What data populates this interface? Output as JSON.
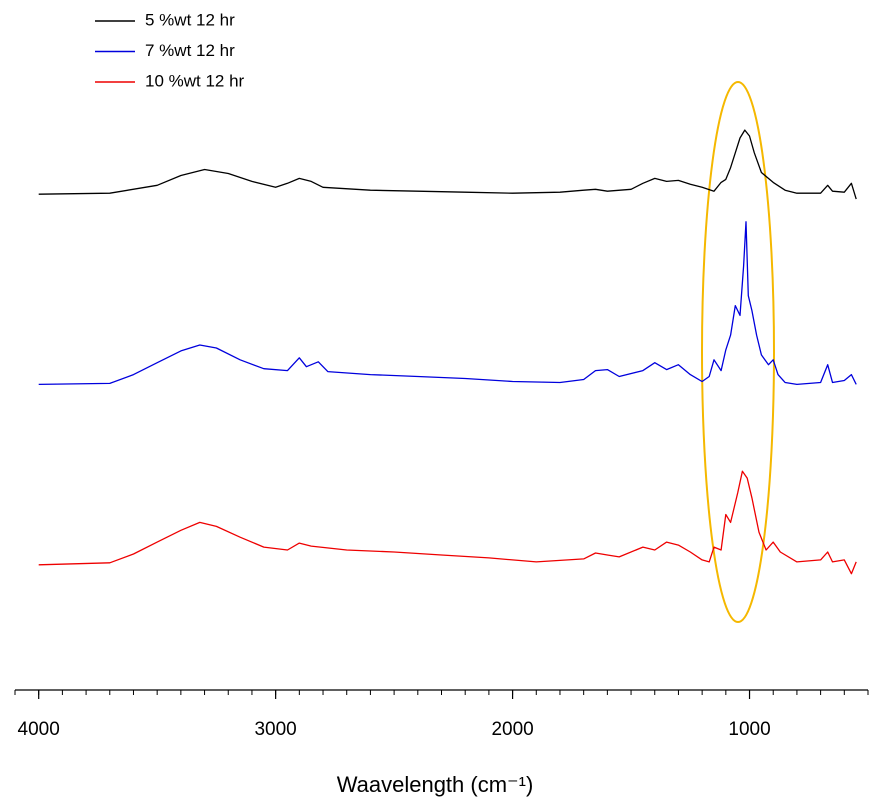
{
  "chart_data": {
    "type": "line",
    "xlabel": "Waavelength (cm⁻¹)",
    "xlim": [
      4100,
      500
    ],
    "xticks": [
      4000,
      3000,
      2000,
      1000
    ],
    "xminorticks": [
      4100,
      4000,
      3900,
      3800,
      3700,
      3600,
      3500,
      3400,
      3300,
      3200,
      3100,
      3000,
      2900,
      2800,
      2700,
      2600,
      2500,
      2400,
      2300,
      2200,
      2100,
      2000,
      1900,
      1800,
      1700,
      1600,
      1500,
      1400,
      1300,
      1200,
      1100,
      1000,
      900,
      800,
      700,
      600,
      500
    ],
    "ylim": [
      0,
      70
    ],
    "legend": "upper left",
    "series": [
      {
        "name": "5 %wt 12 hr",
        "color": "#000000",
        "x": [
          4000,
          3700,
          3500,
          3400,
          3300,
          3200,
          3100,
          3000,
          2950,
          2900,
          2850,
          2800,
          2600,
          2400,
          2200,
          2000,
          1800,
          1700,
          1650,
          1600,
          1500,
          1450,
          1400,
          1350,
          1300,
          1250,
          1200,
          1150,
          1120,
          1100,
          1080,
          1060,
          1040,
          1020,
          1000,
          980,
          950,
          900,
          850,
          800,
          700,
          670,
          650,
          600,
          570,
          550
        ],
        "values": [
          50.3,
          50.4,
          51.2,
          52.2,
          52.8,
          52.4,
          51.6,
          51.0,
          51.4,
          51.9,
          51.6,
          51.0,
          50.7,
          50.6,
          50.5,
          50.4,
          50.5,
          50.7,
          50.8,
          50.6,
          50.8,
          51.4,
          51.9,
          51.6,
          51.7,
          51.3,
          51.0,
          50.6,
          51.5,
          51.8,
          53.0,
          54.5,
          56.0,
          56.8,
          56.2,
          54.5,
          52.5,
          51.5,
          50.7,
          50.4,
          50.4,
          51.2,
          50.6,
          50.5,
          51.4,
          49.8
        ]
      },
      {
        "name": "7 %wt 12 hr",
        "color": "#0000dd",
        "x": [
          4000,
          3700,
          3600,
          3500,
          3400,
          3320,
          3250,
          3150,
          3050,
          2950,
          2900,
          2870,
          2820,
          2780,
          2600,
          2400,
          2200,
          2000,
          1800,
          1700,
          1650,
          1600,
          1550,
          1450,
          1400,
          1350,
          1300,
          1250,
          1200,
          1170,
          1150,
          1120,
          1100,
          1080,
          1060,
          1040,
          1025,
          1015,
          1005,
          990,
          970,
          950,
          920,
          900,
          880,
          850,
          800,
          700,
          670,
          650,
          600,
          570,
          550
        ],
        "values": [
          31.0,
          31.1,
          32.0,
          33.2,
          34.4,
          35.0,
          34.7,
          33.5,
          32.6,
          32.4,
          33.7,
          32.8,
          33.3,
          32.3,
          32.0,
          31.8,
          31.6,
          31.3,
          31.2,
          31.5,
          32.4,
          32.5,
          31.8,
          32.4,
          33.2,
          32.5,
          33.0,
          32.0,
          31.3,
          31.8,
          33.5,
          32.4,
          34.5,
          36.0,
          39.0,
          38.0,
          43.0,
          47.5,
          40.0,
          38.5,
          36.0,
          34.0,
          33.0,
          33.5,
          32.0,
          31.2,
          31.0,
          31.2,
          33.0,
          31.2,
          31.4,
          32.0,
          31.0
        ]
      },
      {
        "name": "10 %wt 12 hr",
        "color": "#ee0000",
        "x": [
          4000,
          3700,
          3600,
          3500,
          3400,
          3320,
          3250,
          3150,
          3050,
          2950,
          2900,
          2850,
          2700,
          2500,
          2300,
          2100,
          1900,
          1700,
          1650,
          1600,
          1550,
          1450,
          1400,
          1350,
          1300,
          1250,
          1200,
          1170,
          1150,
          1120,
          1100,
          1080,
          1050,
          1030,
          1010,
          990,
          960,
          930,
          900,
          870,
          800,
          700,
          670,
          650,
          600,
          570,
          550
        ],
        "values": [
          12.7,
          12.9,
          13.8,
          15.0,
          16.2,
          17.0,
          16.6,
          15.5,
          14.5,
          14.2,
          14.9,
          14.6,
          14.2,
          14.0,
          13.7,
          13.4,
          13.0,
          13.3,
          13.9,
          13.7,
          13.5,
          14.5,
          14.2,
          15.0,
          14.7,
          14.0,
          13.2,
          13.0,
          14.5,
          14.2,
          17.8,
          17.0,
          20.0,
          22.2,
          21.5,
          19.5,
          16.0,
          14.2,
          15.0,
          14.0,
          13.0,
          13.2,
          14.0,
          13.0,
          13.2,
          11.8,
          13.0
        ]
      }
    ]
  }
}
